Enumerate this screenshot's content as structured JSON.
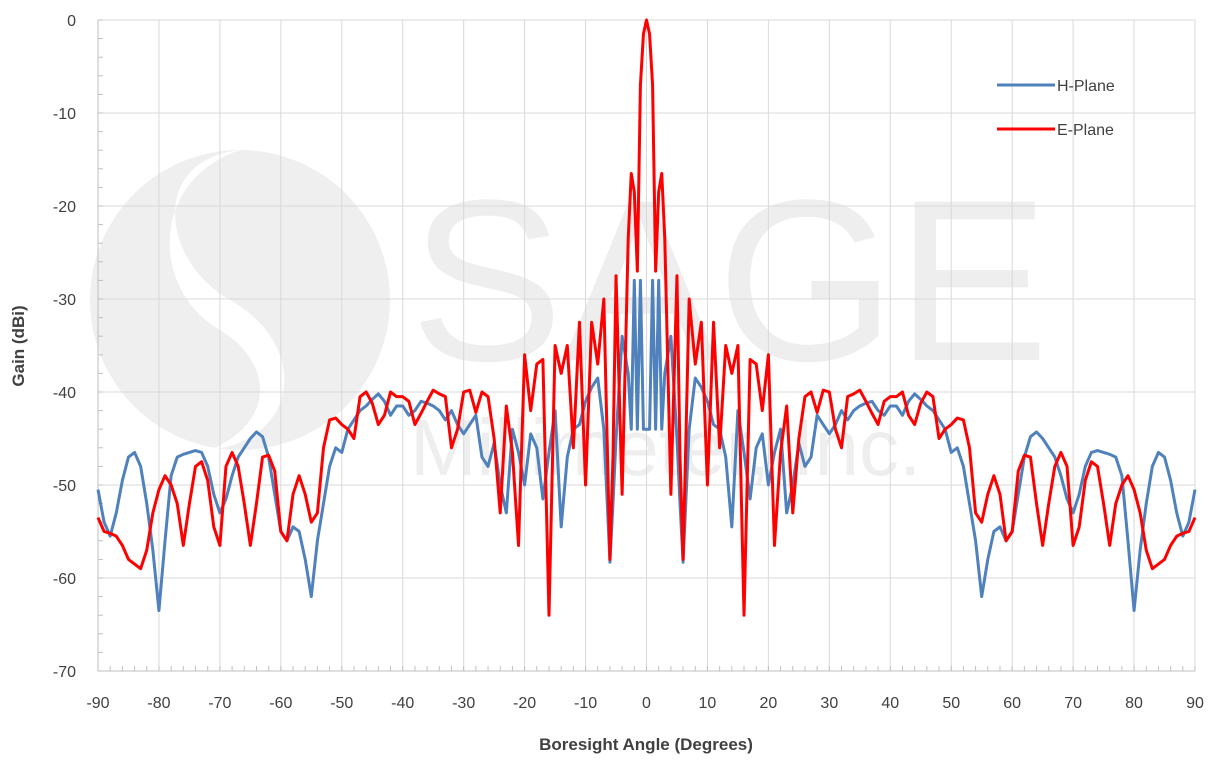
{
  "chart_data": {
    "type": "line",
    "title": "",
    "xlabel": "Boresight Angle (Degrees)",
    "ylabel": "Gain (dBi)",
    "xlim": [
      -90,
      90
    ],
    "ylim": [
      -70,
      0
    ],
    "xticks": [
      -90,
      -80,
      -70,
      -60,
      -50,
      -40,
      -30,
      -20,
      -10,
      0,
      10,
      20,
      30,
      40,
      50,
      60,
      70,
      80,
      90
    ],
    "yticks": [
      0,
      -10,
      -20,
      -30,
      -40,
      -50,
      -60,
      -70
    ],
    "grid": true,
    "legend_position": "top-right",
    "series": [
      {
        "name": "H-Plane",
        "color": "#4f81bd",
        "x": [
          -90,
          -89,
          -88,
          -87,
          -86,
          -85,
          -84,
          -83,
          -82,
          -81,
          -80,
          -79,
          -78,
          -77,
          -76,
          -75,
          -74,
          -73,
          -72,
          -71,
          -70,
          -69,
          -68,
          -67,
          -66,
          -65,
          -64,
          -63,
          -62,
          -61,
          -60,
          -59,
          -58,
          -57,
          -56,
          -55,
          -54,
          -53,
          -52,
          -51,
          -50,
          -49,
          -48,
          -47,
          -46,
          -45,
          -44,
          -43,
          -42,
          -41,
          -40,
          -39,
          -38,
          -37,
          -36,
          -35,
          -34,
          -33,
          -32,
          -31,
          -30,
          -29,
          -28,
          -27,
          -26,
          -25,
          -24,
          -23,
          -22,
          -21,
          -20,
          -19,
          -18,
          -17,
          -16,
          -15,
          -14,
          -13,
          -12,
          -11,
          -10,
          -9,
          -8,
          -7,
          -6,
          -5.5,
          -5,
          -4,
          -3,
          -2.5,
          -2,
          -1.5,
          -1,
          -0.5,
          0,
          0.5,
          1,
          1.5,
          2,
          2.5,
          3,
          4,
          5,
          5.5,
          6,
          7,
          8,
          9,
          10,
          11,
          12,
          13,
          14,
          15,
          16,
          17,
          18,
          19,
          20,
          21,
          22,
          23,
          24,
          25,
          26,
          27,
          28,
          29,
          30,
          31,
          32,
          33,
          34,
          35,
          36,
          37,
          38,
          39,
          40,
          41,
          42,
          43,
          44,
          45,
          46,
          47,
          48,
          49,
          50,
          51,
          52,
          53,
          54,
          55,
          56,
          57,
          58,
          59,
          60,
          61,
          62,
          63,
          64,
          65,
          66,
          67,
          68,
          69,
          70,
          71,
          72,
          73,
          74,
          75,
          76,
          77,
          78,
          79,
          80,
          81,
          82,
          83,
          84,
          85,
          86,
          87,
          88,
          89,
          90
        ],
        "y": [
          -50.5,
          -54,
          -55.5,
          -53,
          -49.5,
          -47,
          -46.5,
          -48,
          -52,
          -57,
          -63.5,
          -56,
          -49,
          -47,
          -46.7,
          -46.5,
          -46.3,
          -46.5,
          -48,
          -51,
          -53,
          -51.5,
          -49,
          -47,
          -46,
          -45,
          -44.3,
          -44.8,
          -47,
          -51,
          -55,
          -56,
          -54.5,
          -55,
          -58,
          -62,
          -56,
          -52,
          -48,
          -46,
          -46.5,
          -44,
          -43,
          -42,
          -41.5,
          -40.8,
          -40.2,
          -41,
          -42.5,
          -41.5,
          -41.5,
          -42.5,
          -42,
          -41,
          -41.2,
          -41.5,
          -42,
          -43,
          -42,
          -43.5,
          -44.5,
          -43.5,
          -42.5,
          -47,
          -48,
          -45.5,
          -50,
          -53,
          -44,
          -46.5,
          -50,
          -44.5,
          -46,
          -51.5,
          -46.5,
          -42,
          -54.5,
          -47,
          -44,
          -43.5,
          -41,
          -39.5,
          -38.5,
          -44,
          -58.3,
          -52,
          -45,
          -34,
          -38,
          -44,
          -28,
          -44,
          -28,
          -44,
          -44,
          -44,
          -28,
          -44,
          -28,
          -44,
          -38,
          -34,
          -45,
          -52,
          -58.3,
          -44,
          -38.5,
          -39.5,
          -41,
          -43.5,
          -44,
          -47,
          -54.5,
          -42,
          -46.5,
          -51.5,
          -46,
          -44.5,
          -50,
          -46.5,
          -44,
          -53,
          -50,
          -45.5,
          -48,
          -47,
          -42.5,
          -43.5,
          -44.5,
          -43.5,
          -42,
          -43,
          -42,
          -41.5,
          -41.2,
          -41,
          -42,
          -42.5,
          -41.5,
          -41.5,
          -42.5,
          -41,
          -40.2,
          -40.8,
          -41.5,
          -42,
          -43,
          -44,
          -46.5,
          -46,
          -48,
          -52,
          -56,
          -62,
          -58,
          -55,
          -54.5,
          -56,
          -55,
          -51,
          -47,
          -44.8,
          -44.3,
          -45,
          -46,
          -47,
          -49,
          -51.5,
          -53,
          -51,
          -48,
          -46.5,
          -46.3,
          -46.5,
          -46.7,
          -47,
          -49,
          -56,
          -63.5,
          -57,
          -52,
          -48,
          -46.5,
          -47,
          -49.5,
          -53,
          -55.5,
          -54,
          -50.5
        ]
      },
      {
        "name": "E-Plane",
        "color": "#ff0000",
        "x": [
          -90,
          -89,
          -88,
          -87,
          -86,
          -85,
          -84,
          -83,
          -82,
          -81,
          -80,
          -79,
          -78,
          -77,
          -76,
          -75,
          -74,
          -73,
          -72,
          -71,
          -70,
          -69,
          -68,
          -67,
          -66,
          -65,
          -64,
          -63,
          -62,
          -61,
          -60,
          -59,
          -58,
          -57,
          -56,
          -55,
          -54,
          -53,
          -52,
          -51,
          -50,
          -49,
          -48,
          -47,
          -46,
          -45,
          -44,
          -43,
          -42,
          -41,
          -40,
          -39,
          -38,
          -37,
          -36,
          -35,
          -34,
          -33,
          -32,
          -31,
          -30,
          -29,
          -28,
          -27,
          -26,
          -25,
          -24,
          -23,
          -22,
          -21,
          -20,
          -19,
          -18,
          -17,
          -16,
          -15,
          -14,
          -13,
          -12,
          -11,
          -10,
          -9,
          -8,
          -7,
          -6,
          -5.5,
          -5,
          -4,
          -3,
          -2.5,
          -2,
          -1.5,
          -1,
          -0.5,
          0,
          0.5,
          1,
          1.5,
          2,
          2.5,
          3,
          4,
          5,
          5.5,
          6,
          7,
          8,
          9,
          10,
          11,
          12,
          13,
          14,
          15,
          16,
          17,
          18,
          19,
          20,
          21,
          22,
          23,
          24,
          25,
          26,
          27,
          28,
          29,
          30,
          31,
          32,
          33,
          34,
          35,
          36,
          37,
          38,
          39,
          40,
          41,
          42,
          43,
          44,
          45,
          46,
          47,
          48,
          49,
          50,
          51,
          52,
          53,
          54,
          55,
          56,
          57,
          58,
          59,
          60,
          61,
          62,
          63,
          64,
          65,
          66,
          67,
          68,
          69,
          70,
          71,
          72,
          73,
          74,
          75,
          76,
          77,
          78,
          79,
          80,
          81,
          82,
          83,
          84,
          85,
          86,
          87,
          88,
          89,
          90
        ],
        "y": [
          -53.5,
          -55,
          -55.2,
          -55.5,
          -56.5,
          -58,
          -58.5,
          -59,
          -57,
          -53,
          -50.5,
          -49,
          -50,
          -52,
          -56.5,
          -52,
          -48,
          -47.5,
          -49.5,
          -54.5,
          -56.5,
          -48,
          -46.5,
          -48,
          -52,
          -56.5,
          -52,
          -47,
          -46.8,
          -48.5,
          -55,
          -56,
          -51,
          -49,
          -51,
          -54,
          -53,
          -46,
          -43,
          -42.8,
          -43.5,
          -44,
          -45,
          -40.5,
          -40,
          -41.2,
          -43.5,
          -42.5,
          -40,
          -40.5,
          -40.5,
          -41,
          -43.5,
          -42.3,
          -41,
          -39.8,
          -40.2,
          -40.5,
          -46,
          -44,
          -40,
          -39.8,
          -42.2,
          -40,
          -40.5,
          -45,
          -53,
          -41.5,
          -46.5,
          -56.5,
          -36,
          -42,
          -37,
          -36.5,
          -64,
          -35,
          -38,
          -35,
          -46,
          -32.5,
          -50,
          -32.5,
          -37,
          -30,
          -58,
          -47,
          -27.5,
          -51,
          -23.5,
          -16.5,
          -18.5,
          -27,
          -7,
          -1.5,
          0,
          -1.5,
          -7,
          -27,
          -18.5,
          -16.5,
          -23.5,
          -51,
          -27.5,
          -47,
          -58,
          -30,
          -37,
          -32.5,
          -50,
          -32.5,
          -46,
          -35,
          -38,
          -35,
          -64,
          -36.5,
          -37,
          -42,
          -36,
          -56.5,
          -46.5,
          -41.5,
          -53,
          -45,
          -40.5,
          -40,
          -42.2,
          -39.8,
          -40,
          -44,
          -46,
          -40.5,
          -40.2,
          -39.8,
          -41,
          -42.3,
          -43.5,
          -41,
          -40.5,
          -40.5,
          -40,
          -42.5,
          -43.5,
          -41.2,
          -40,
          -40.5,
          -45,
          -44,
          -43.5,
          -42.8,
          -43,
          -46,
          -53,
          -54,
          -51,
          -49,
          -51,
          -56,
          -55,
          -48.5,
          -46.8,
          -47,
          -52,
          -56.5,
          -52,
          -48,
          -46.5,
          -48,
          -56.5,
          -54.5,
          -49.5,
          -47.5,
          -48,
          -52,
          -56.5,
          -52,
          -50,
          -49,
          -50.5,
          -53,
          -57,
          -59,
          -58.5,
          -58,
          -56.5,
          -55.5,
          -55.2,
          -55,
          -53.5
        ]
      }
    ]
  },
  "watermark": {
    "text": "SAGE",
    "subtext": "Millimeter, Inc."
  }
}
